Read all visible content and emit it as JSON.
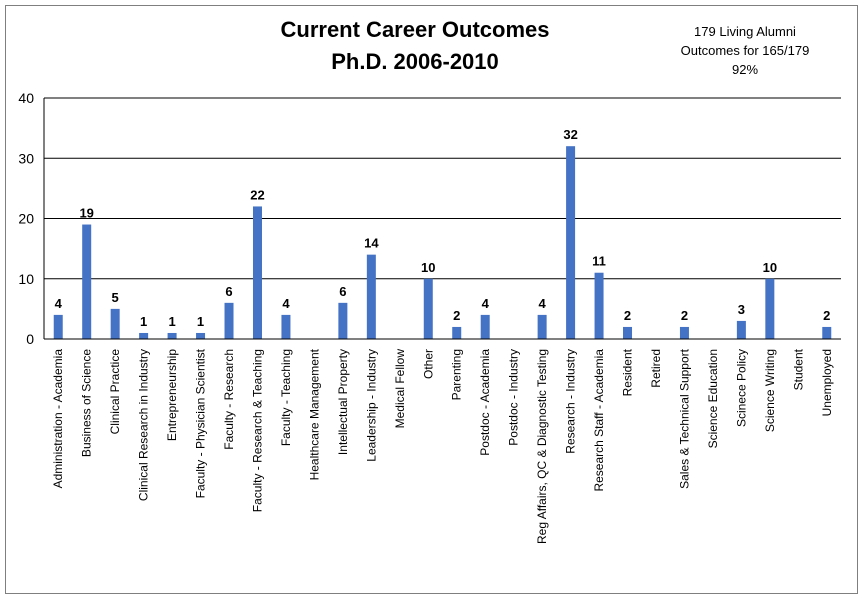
{
  "chart_data": {
    "type": "bar",
    "title": "Current Career Outcomes",
    "subtitle": "Ph.D. 2006-2010",
    "summary": [
      "179 Living Alumni",
      "Outcomes for 165/179",
      "92%"
    ],
    "categories": [
      "Administration - Academia",
      "Business of Science",
      "Clinical Practice",
      "Clinical Research in Industry",
      "Entrepreneurship",
      "Faculty - Physician Scientist",
      "Faculty - Research",
      "Faculty - Research & Teaching",
      "Faculty - Teaching",
      "Healthcare Management",
      "Intellectual Property",
      "Leadership - Industry",
      "Medical Fellow",
      "Other",
      "Parenting",
      "Postdoc - Academia",
      "Postdoc - Industry",
      "Reg Affairs, QC & Diagnostic Testing",
      "Research - Industry",
      "Research Staff - Academia",
      "Resident",
      "Retired",
      "Sales & Technical Support",
      "Science Education",
      "Scinece Policy",
      "Science Writing",
      "Student",
      "Unemployed"
    ],
    "values": [
      4,
      19,
      5,
      1,
      1,
      1,
      6,
      22,
      4,
      0,
      6,
      14,
      0,
      10,
      2,
      4,
      0,
      4,
      32,
      11,
      2,
      0,
      2,
      0,
      3,
      10,
      0,
      2
    ],
    "ylim": [
      0,
      40
    ],
    "yticks": [
      0,
      10,
      20,
      30,
      40
    ],
    "grid": true,
    "legend": "none",
    "bar_color": "#4472c4"
  }
}
